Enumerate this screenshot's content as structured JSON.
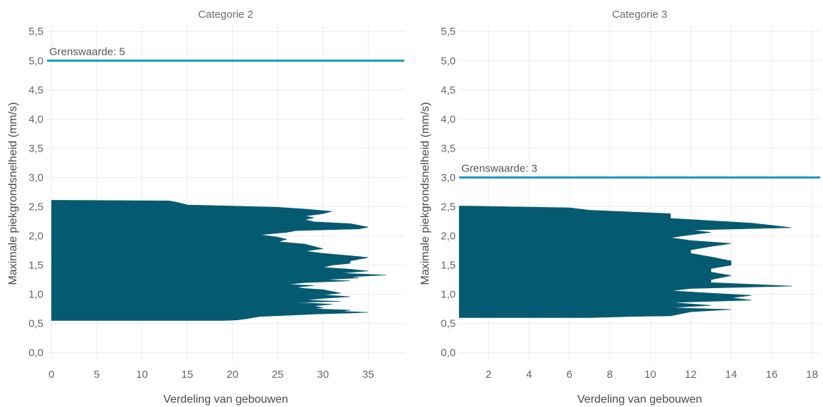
{
  "chart_data": [
    {
      "type": "area",
      "title": "Categorie 2",
      "xlabel": "Verdeling van gebouwen",
      "ylabel": "Maximale piekgrondsnelheid (mm/s)",
      "xlim": [
        -0.5,
        39
      ],
      "ylim": [
        -0.15,
        5.6
      ],
      "x_ticks": [
        0,
        5,
        10,
        15,
        20,
        25,
        30,
        35
      ],
      "x_tick_labels": [
        "0",
        "5",
        "10",
        "15",
        "20",
        "25",
        "30",
        "35"
      ],
      "y_ticks": [
        0,
        0.5,
        1,
        1.5,
        2,
        2.5,
        3,
        3.5,
        4,
        4.5,
        5,
        5.5
      ],
      "y_tick_labels": [
        "0,0",
        "0,5",
        "1,0",
        "1,5",
        "2,0",
        "2,5",
        "3,0",
        "3,5",
        "4,0",
        "4,5",
        "5,0",
        "5,5"
      ],
      "fill_color": "#045a71",
      "reference_line": {
        "value": 5,
        "label": "Grenswaarde: 5",
        "color": "#1c96c8"
      },
      "profile": [
        [
          0.55,
          0
        ],
        [
          0.55,
          19
        ],
        [
          0.56,
          20.5
        ],
        [
          0.58,
          21.5
        ],
        [
          0.62,
          23
        ],
        [
          0.64,
          26
        ],
        [
          0.66,
          29
        ],
        [
          0.68,
          33
        ],
        [
          0.69,
          35
        ],
        [
          0.71,
          32
        ],
        [
          0.73,
          33
        ],
        [
          0.75,
          29
        ],
        [
          0.77,
          30
        ],
        [
          0.8,
          29
        ],
        [
          0.83,
          31
        ],
        [
          0.86,
          27
        ],
        [
          0.88,
          32
        ],
        [
          0.9,
          28
        ],
        [
          0.93,
          30
        ],
        [
          0.96,
          33
        ],
        [
          0.99,
          30
        ],
        [
          1.02,
          32
        ],
        [
          1.05,
          31
        ],
        [
          1.08,
          30
        ],
        [
          1.1,
          28
        ],
        [
          1.12,
          27
        ],
        [
          1.15,
          29
        ],
        [
          1.17,
          26
        ],
        [
          1.2,
          28
        ],
        [
          1.23,
          33
        ],
        [
          1.25,
          30
        ],
        [
          1.28,
          34
        ],
        [
          1.3,
          33
        ],
        [
          1.33,
          37
        ],
        [
          1.36,
          32
        ],
        [
          1.4,
          35
        ],
        [
          1.43,
          33
        ],
        [
          1.46,
          30
        ],
        [
          1.5,
          31
        ],
        [
          1.53,
          33
        ],
        [
          1.57,
          33
        ],
        [
          1.6,
          34
        ],
        [
          1.63,
          35
        ],
        [
          1.66,
          33
        ],
        [
          1.7,
          30
        ],
        [
          1.74,
          28
        ],
        [
          1.78,
          30
        ],
        [
          1.82,
          29
        ],
        [
          1.86,
          28
        ],
        [
          1.9,
          25
        ],
        [
          1.94,
          26
        ],
        [
          1.98,
          25
        ],
        [
          2.02,
          23
        ],
        [
          2.06,
          26
        ],
        [
          2.09,
          27
        ],
        [
          2.12,
          34
        ],
        [
          2.15,
          35
        ],
        [
          2.18,
          34
        ],
        [
          2.21,
          33
        ],
        [
          2.24,
          29
        ],
        [
          2.28,
          28
        ],
        [
          2.31,
          29
        ],
        [
          2.34,
          28
        ],
        [
          2.38,
          30
        ],
        [
          2.42,
          31
        ],
        [
          2.46,
          28
        ],
        [
          2.49,
          25
        ],
        [
          2.51,
          20
        ],
        [
          2.53,
          15
        ],
        [
          2.57,
          14
        ],
        [
          2.6,
          13
        ],
        [
          2.61,
          0
        ]
      ]
    },
    {
      "type": "area",
      "title": "Categorie 3",
      "xlabel": "Verdeling van gebouwen",
      "ylabel": "Maximale piekgrondsnelheid (mm/s)",
      "xlim": [
        0.55,
        18.4
      ],
      "ylim": [
        -0.15,
        5.6
      ],
      "x_ticks": [
        2,
        4,
        6,
        8,
        10,
        12,
        14,
        16,
        18
      ],
      "x_tick_labels": [
        "2",
        "4",
        "6",
        "8",
        "10",
        "12",
        "14",
        "16",
        "18"
      ],
      "y_ticks": [
        0,
        0.5,
        1,
        1.5,
        2,
        2.5,
        3,
        3.5,
        4,
        4.5,
        5,
        5.5
      ],
      "y_tick_labels": [
        "0,0",
        "0,5",
        "1,0",
        "1,5",
        "2,0",
        "2,5",
        "3,0",
        "3,5",
        "4,0",
        "4,5",
        "5,0",
        "5,5"
      ],
      "fill_color": "#045a71",
      "reference_line": {
        "value": 3,
        "label": "Grenswaarde: 3",
        "color": "#1c96c8"
      },
      "profile": [
        [
          0.6,
          1
        ],
        [
          0.6,
          7
        ],
        [
          0.62,
          9
        ],
        [
          0.63,
          11
        ],
        [
          0.7,
          12
        ],
        [
          0.74,
          14
        ],
        [
          0.77,
          11
        ],
        [
          0.81,
          13
        ],
        [
          0.86,
          11
        ],
        [
          0.9,
          15
        ],
        [
          0.94,
          14
        ],
        [
          0.98,
          15
        ],
        [
          1.02,
          13
        ],
        [
          1.06,
          11
        ],
        [
          1.1,
          12
        ],
        [
          1.14,
          17
        ],
        [
          1.17,
          15
        ],
        [
          1.2,
          13
        ],
        [
          1.25,
          13
        ],
        [
          1.32,
          14
        ],
        [
          1.38,
          13
        ],
        [
          1.44,
          13
        ],
        [
          1.5,
          14
        ],
        [
          1.57,
          14
        ],
        [
          1.64,
          13
        ],
        [
          1.7,
          12
        ],
        [
          1.76,
          12
        ],
        [
          1.82,
          13
        ],
        [
          1.87,
          14
        ],
        [
          1.92,
          12
        ],
        [
          1.97,
          11
        ],
        [
          2.02,
          12
        ],
        [
          2.06,
          13
        ],
        [
          2.1,
          12
        ],
        [
          2.14,
          17
        ],
        [
          2.18,
          16
        ],
        [
          2.22,
          15
        ],
        [
          2.3,
          11
        ],
        [
          2.38,
          11
        ],
        [
          2.44,
          7
        ],
        [
          2.48,
          6
        ],
        [
          2.51,
          1
        ]
      ]
    }
  ]
}
